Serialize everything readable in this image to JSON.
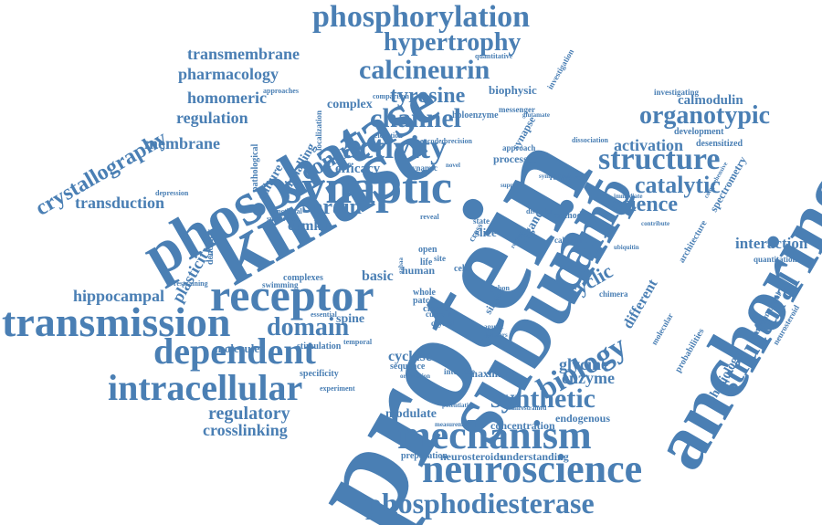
{
  "color": "#4a7fb4",
  "words": {
    "protein": "protein",
    "subunit": "subunit",
    "kinase": "kinase",
    "anchoring": "anchoring",
    "phosphatase": "phosphatase",
    "synaptic": "synaptic",
    "receptor": "receptor",
    "transmission": "transmission",
    "camp": "camp",
    "neuroscience": "neuroscience",
    "mechanism": "mechanism",
    "phosphodiesterase": "phosphodiesterase",
    "intracellular": "intracellular",
    "dependent": "dependent",
    "phosphorylation": "phosphorylation",
    "hypertrophy": "hypertrophy",
    "calcineurin": "calcineurin",
    "channel": "channel",
    "activity": "activity",
    "structure": "structure",
    "synthetic": "synthetic",
    "biology": "biology",
    "structural": "structural",
    "crystallography": "crystallography",
    "domain": "domain",
    "tyrosine": "tyrosine",
    "organotypic": "organotypic",
    "control": "control",
    "brain": "brain",
    "catalytic": "catalytic",
    "science": "science",
    "transmembrane": "transmembrane",
    "pharmacology": "pharmacology",
    "homomeric": "homomeric",
    "regulation": "regulation",
    "membrane": "membrane",
    "transduction": "transduction",
    "hippocampal": "hippocampal",
    "regulatory": "regulatory",
    "crosslinking": "crosslinking",
    "plasticity": "plasticity",
    "interaction": "interaction",
    "activation": "activation",
    "calmodulin": "calmodulin",
    "cyclic": "cyclic",
    "glycine": "glycine",
    "enzyme": "enzyme",
    "cyclase": "cyclase",
    "modulate": "modulate",
    "endogenous": "endogenous",
    "concentration": "concentration",
    "understanding": "understanding",
    "neurosteroids": "neurosteroids",
    "preparation": "preparation",
    "different": "different",
    "physiology": "physiology",
    "spectrometry": "spectrometry",
    "biophysic": "biophysic",
    "complex": "complex",
    "culture": "culture",
    "signalling": "signalling",
    "efficacy": "efficacy",
    "camkii": "camkii",
    "basic": "basic",
    "human": "human",
    "spine": "spine",
    "complexes": "complexes",
    "molecule": "molecule",
    "specificity": "specificity",
    "stimulation": "stimulation",
    "sequence": "sequence",
    "clamp": "clamp",
    "whole": "whole",
    "patch": "patch",
    "slice": "slice",
    "life": "life",
    "cell": "cell",
    "single": "single",
    "maximum": "maximum",
    "interface": "interface",
    "ligand": "ligand",
    "approaches": "approaches",
    "comparison": "comparison",
    "holoenzyme": "holoenzyme",
    "messenger": "messenger",
    "investigating": "investigating",
    "development": "development",
    "desensitized": "desensitized",
    "quantitation": "quantitation",
    "quantitative": "quantitative",
    "investigation": "investigation",
    "elevation": "elevation",
    "encoded": "encoded",
    "precision": "precision",
    "dissociation": "dissociation",
    "synapse": "synapse",
    "approach": "approach",
    "processes": "processes",
    "depression": "depression",
    "dendritic": "dendritic",
    "swimming": "swimming",
    "restraining": "restraining",
    "essential": "essential",
    "experiment": "experiment",
    "functional": "functional",
    "substrate": "substrate",
    "pathological": "pathological",
    "localization": "localization",
    "temporal": "temporal",
    "orientation": "orientation",
    "potentiation": "potentiation",
    "measurement": "measurement",
    "unrestrained": "unrestrained",
    "conformational": "conformational",
    "neurosteroid": "neurosteroid",
    "probabilities": "probabilities",
    "architecture": "architecture",
    "chimera": "chimera",
    "crystal": "crystal",
    "current": "current",
    "method": "method",
    "calcium": "calcium",
    "dynamic": "dynamic",
    "open": "open",
    "site": "site",
    "state": "state",
    "reveal": "reveal",
    "cross": "cross",
    "recapture": "recapture",
    "support": "support",
    "disorder": "disorder",
    "ubiquitin": "ubiquitin",
    "agonist": "agonist",
    "gabaars": "gabaars",
    "gabaa": "gabaa",
    "gabon": "gabon",
    "review": "review",
    "novel": "novel",
    "glutamate": "glutamate",
    "sympathetic": "sympathetic",
    "molecular": "molecular",
    "immediate": "immediate",
    "contribute": "contribute",
    "comprehensive": "comprehensive"
  }
}
